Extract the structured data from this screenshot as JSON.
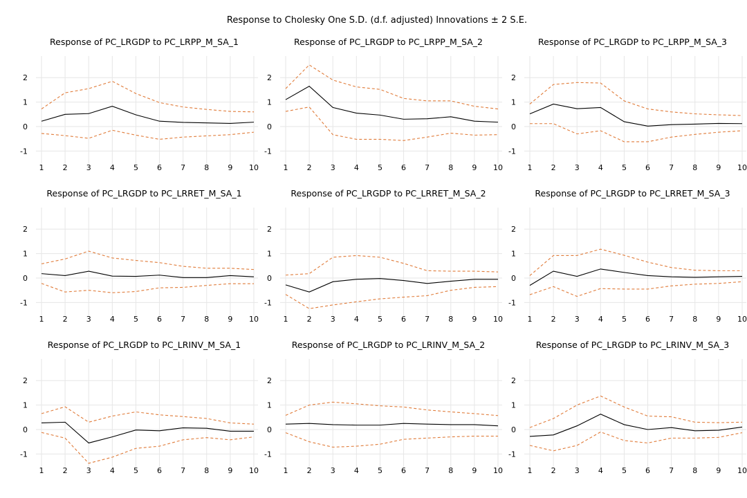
{
  "title": "Response to Cholesky One S.D. (d.f. adjusted) Innovations ± 2 S.E.",
  "colors": {
    "response": "#000000",
    "bands": "#e07b39",
    "grid": "#e6e6e6"
  },
  "chart_data": [
    {
      "type": "line",
      "title": "Response of PC_LRGDP to PC_LRPP_M_SA_1",
      "x": [
        1,
        2,
        3,
        4,
        5,
        6,
        7,
        8,
        9,
        10
      ],
      "ylim": [
        -1.3,
        2.6
      ],
      "yticks": [
        -1,
        0,
        1,
        2
      ],
      "grid": true,
      "series": [
        {
          "role": "response",
          "values": [
            0.22,
            0.5,
            0.53,
            0.83,
            0.48,
            0.22,
            0.17,
            0.15,
            0.13,
            0.18
          ]
        },
        {
          "role": "upper",
          "values": [
            0.72,
            1.38,
            1.55,
            1.85,
            1.35,
            0.98,
            0.8,
            0.7,
            0.62,
            0.6
          ]
        },
        {
          "role": "lower",
          "values": [
            -0.28,
            -0.37,
            -0.48,
            -0.15,
            -0.35,
            -0.52,
            -0.43,
            -0.38,
            -0.33,
            -0.23
          ]
        }
      ]
    },
    {
      "type": "line",
      "title": "Response of PC_LRGDP to PC_LRPP_M_SA_2",
      "x": [
        1,
        2,
        3,
        4,
        5,
        6,
        7,
        8,
        9,
        10
      ],
      "ylim": [
        -1.3,
        2.6
      ],
      "yticks": [
        -1,
        0,
        1,
        2
      ],
      "grid": true,
      "series": [
        {
          "role": "response",
          "values": [
            1.1,
            1.65,
            0.78,
            0.55,
            0.47,
            0.3,
            0.32,
            0.4,
            0.22,
            0.18
          ]
        },
        {
          "role": "upper",
          "values": [
            1.55,
            2.52,
            1.9,
            1.62,
            1.52,
            1.15,
            1.05,
            1.05,
            0.83,
            0.72
          ]
        },
        {
          "role": "lower",
          "values": [
            0.62,
            0.8,
            -0.33,
            -0.52,
            -0.52,
            -0.57,
            -0.43,
            -0.27,
            -0.35,
            -0.33
          ]
        }
      ]
    },
    {
      "type": "line",
      "title": "Response of PC_LRGDP to PC_LRPP_M_SA_3",
      "x": [
        1,
        2,
        3,
        4,
        5,
        6,
        7,
        8,
        9,
        10
      ],
      "ylim": [
        -1.3,
        2.6
      ],
      "yticks": [
        -1,
        0,
        1,
        2
      ],
      "grid": true,
      "series": [
        {
          "role": "response",
          "values": [
            0.52,
            0.92,
            0.73,
            0.78,
            0.2,
            0.02,
            0.08,
            0.1,
            0.13,
            0.12
          ]
        },
        {
          "role": "upper",
          "values": [
            0.92,
            1.72,
            1.8,
            1.78,
            1.05,
            0.72,
            0.6,
            0.52,
            0.48,
            0.45
          ]
        },
        {
          "role": "lower",
          "values": [
            0.12,
            0.12,
            -0.3,
            -0.17,
            -0.62,
            -0.62,
            -0.43,
            -0.32,
            -0.23,
            -0.17
          ]
        }
      ]
    },
    {
      "type": "line",
      "title": "Response of PC_LRGDP to PC_LRRET_M_SA_1",
      "x": [
        1,
        2,
        3,
        4,
        5,
        6,
        7,
        8,
        9,
        10
      ],
      "ylim": [
        -1.3,
        2.6
      ],
      "yticks": [
        -1,
        0,
        1,
        2
      ],
      "grid": true,
      "series": [
        {
          "role": "response",
          "values": [
            0.18,
            0.1,
            0.28,
            0.08,
            0.07,
            0.12,
            0.02,
            0.02,
            0.1,
            0.05
          ]
        },
        {
          "role": "upper",
          "values": [
            0.58,
            0.78,
            1.1,
            0.82,
            0.72,
            0.63,
            0.48,
            0.4,
            0.4,
            0.35
          ]
        },
        {
          "role": "lower",
          "values": [
            -0.22,
            -0.57,
            -0.5,
            -0.6,
            -0.55,
            -0.4,
            -0.38,
            -0.3,
            -0.23,
            -0.23
          ]
        }
      ]
    },
    {
      "type": "line",
      "title": "Response of PC_LRGDP to PC_LRRET_M_SA_2",
      "x": [
        1,
        2,
        3,
        4,
        5,
        6,
        7,
        8,
        9,
        10
      ],
      "ylim": [
        -1.3,
        2.6
      ],
      "yticks": [
        -1,
        0,
        1,
        2
      ],
      "grid": true,
      "series": [
        {
          "role": "response",
          "values": [
            -0.28,
            -0.57,
            -0.15,
            -0.05,
            -0.02,
            -0.1,
            -0.22,
            -0.13,
            -0.05,
            -0.05
          ]
        },
        {
          "role": "upper",
          "values": [
            0.12,
            0.18,
            0.85,
            0.92,
            0.85,
            0.6,
            0.3,
            0.28,
            0.28,
            0.25
          ]
        },
        {
          "role": "lower",
          "values": [
            -0.67,
            -1.25,
            -1.1,
            -0.97,
            -0.85,
            -0.78,
            -0.72,
            -0.5,
            -0.38,
            -0.35
          ]
        }
      ]
    },
    {
      "type": "line",
      "title": "Response of PC_LRGDP to PC_LRRET_M_SA_3",
      "x": [
        1,
        2,
        3,
        4,
        5,
        6,
        7,
        8,
        9,
        10
      ],
      "ylim": [
        -1.3,
        2.6
      ],
      "yticks": [
        -1,
        0,
        1,
        2
      ],
      "grid": true,
      "series": [
        {
          "role": "response",
          "values": [
            -0.3,
            0.28,
            0.07,
            0.37,
            0.23,
            0.1,
            0.05,
            0.03,
            0.05,
            0.07
          ]
        },
        {
          "role": "upper",
          "values": [
            0.1,
            0.92,
            0.92,
            1.18,
            0.93,
            0.65,
            0.43,
            0.32,
            0.3,
            0.3
          ]
        },
        {
          "role": "lower",
          "values": [
            -0.68,
            -0.35,
            -0.75,
            -0.43,
            -0.45,
            -0.45,
            -0.32,
            -0.25,
            -0.22,
            -0.15
          ]
        }
      ]
    },
    {
      "type": "line",
      "title": "Response of PC_LRGDP to PC_LRINV_M_SA_1",
      "x": [
        1,
        2,
        3,
        4,
        5,
        6,
        7,
        8,
        9,
        10
      ],
      "ylim": [
        -1.3,
        2.6
      ],
      "yticks": [
        -1,
        0,
        1,
        2
      ],
      "grid": true,
      "series": [
        {
          "role": "response",
          "values": [
            0.27,
            0.3,
            -0.55,
            -0.3,
            -0.02,
            -0.05,
            0.07,
            0.05,
            -0.07,
            -0.07
          ]
        },
        {
          "role": "upper",
          "values": [
            0.65,
            0.93,
            0.3,
            0.55,
            0.72,
            0.6,
            0.53,
            0.45,
            0.27,
            0.22
          ]
        },
        {
          "role": "lower",
          "values": [
            -0.12,
            -0.35,
            -1.38,
            -1.13,
            -0.77,
            -0.68,
            -0.42,
            -0.33,
            -0.42,
            -0.3
          ]
        }
      ]
    },
    {
      "type": "line",
      "title": "Response of PC_LRGDP to PC_LRINV_M_SA_2",
      "x": [
        1,
        2,
        3,
        4,
        5,
        6,
        7,
        8,
        9,
        10
      ],
      "ylim": [
        -1.3,
        2.6
      ],
      "yticks": [
        -1,
        0,
        1,
        2
      ],
      "grid": true,
      "series": [
        {
          "role": "response",
          "values": [
            0.22,
            0.25,
            0.2,
            0.18,
            0.18,
            0.25,
            0.22,
            0.2,
            0.2,
            0.15
          ]
        },
        {
          "role": "upper",
          "values": [
            0.58,
            1.0,
            1.12,
            1.05,
            0.97,
            0.92,
            0.8,
            0.72,
            0.65,
            0.57
          ]
        },
        {
          "role": "lower",
          "values": [
            -0.13,
            -0.5,
            -0.72,
            -0.68,
            -0.6,
            -0.4,
            -0.35,
            -0.3,
            -0.27,
            -0.27
          ]
        }
      ]
    },
    {
      "type": "line",
      "title": "Response of PC_LRGDP to PC_LRINV_M_SA_3",
      "x": [
        1,
        2,
        3,
        4,
        5,
        6,
        7,
        8,
        9,
        10
      ],
      "ylim": [
        -1.3,
        2.6
      ],
      "yticks": [
        -1,
        0,
        1,
        2
      ],
      "grid": true,
      "series": [
        {
          "role": "response",
          "values": [
            -0.28,
            -0.22,
            0.15,
            0.63,
            0.2,
            0.0,
            0.08,
            -0.05,
            -0.03,
            0.1
          ]
        },
        {
          "role": "upper",
          "values": [
            0.08,
            0.45,
            1.0,
            1.37,
            0.92,
            0.55,
            0.52,
            0.3,
            0.28,
            0.3
          ]
        },
        {
          "role": "lower",
          "values": [
            -0.65,
            -0.87,
            -0.65,
            -0.1,
            -0.45,
            -0.55,
            -0.35,
            -0.35,
            -0.32,
            -0.13
          ]
        }
      ]
    }
  ]
}
